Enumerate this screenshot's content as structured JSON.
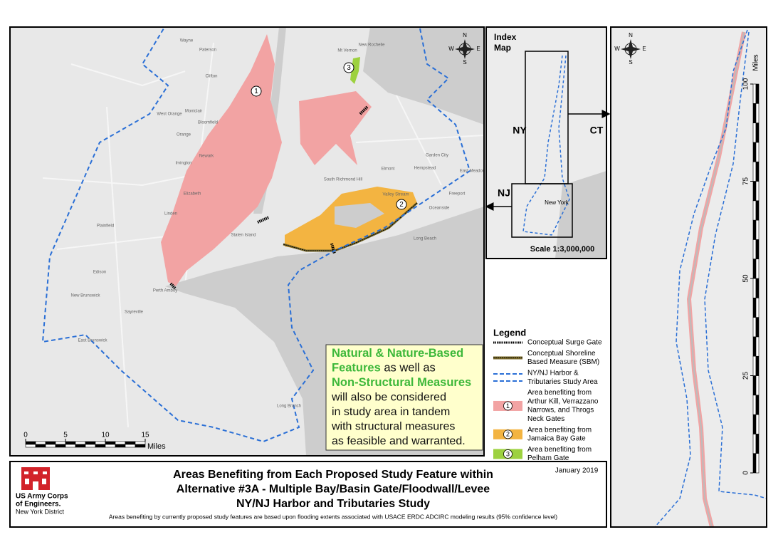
{
  "main_map": {
    "places": [
      "Wayne",
      "Paterson",
      "Clifton",
      "West Orange",
      "Montclair",
      "Bloomfield",
      "Orange",
      "Newark",
      "Irvington",
      "Elizabeth",
      "Linden",
      "Plainfield",
      "Edison",
      "Perth Amboy",
      "New Brunswick",
      "Sayreville",
      "East Brunswick",
      "Staten Island",
      "Long Branch",
      "Mt Vernon",
      "New Rochelle",
      "South Richmond Hill",
      "Elmont",
      "Hempstead",
      "Valley Stream",
      "Freeport",
      "Oceanside",
      "Long Beach",
      "Garden City",
      "East Meadow"
    ],
    "markers": [
      "1",
      "2",
      "3"
    ],
    "compass": {
      "n": "N",
      "e": "E",
      "s": "S",
      "w": "W"
    },
    "scale_bar": {
      "ticks": [
        0,
        5,
        10,
        15
      ],
      "unit": "Miles"
    }
  },
  "callout": {
    "lines": [
      [
        {
          "text": "Natural & Nature-Based",
          "color": "#3db83a"
        }
      ],
      [
        {
          "text": "Features",
          "color": "#3db83a"
        },
        {
          "text": " as well as",
          "color": "#111111"
        }
      ],
      [
        {
          "text": "Non-Structural Measures",
          "color": "#3db83a"
        }
      ],
      [
        {
          "text": "will also be considered",
          "color": "#111111"
        }
      ],
      [
        {
          "text": "in study area in tandem",
          "color": "#111111"
        }
      ],
      [
        {
          "text": "with structural measures",
          "color": "#111111"
        }
      ],
      [
        {
          "text": "as feasible and warranted.",
          "color": "#111111"
        }
      ]
    ]
  },
  "legend": {
    "title": "Legend",
    "items": [
      {
        "symbol": "surge-gate",
        "lines": [
          "Conceptual Surge Gate"
        ]
      },
      {
        "symbol": "shoreline",
        "lines": [
          "Conceptual Shoreline",
          "Based Measure (SBM)"
        ]
      },
      {
        "symbol": "study-area",
        "lines": [
          "NY/NJ Harbor &",
          "Tributaries Study Area"
        ]
      },
      {
        "symbol": "area",
        "marker": "1",
        "color": "#f2a3a3",
        "lines": [
          "Area benefiting from",
          "Arthur Kill, Verrazzano",
          "Narrows, and Throgs",
          "Neck Gates"
        ]
      },
      {
        "symbol": "area",
        "marker": "2",
        "color": "#f3b441",
        "lines": [
          "Area benefiting from",
          "Jamaica Bay Gate"
        ]
      },
      {
        "symbol": "area",
        "marker": "3",
        "color": "#9dd13f",
        "lines": [
          "Area benefiting from",
          "Pelham Gate"
        ]
      }
    ]
  },
  "index_map": {
    "title": [
      "Index",
      "Map"
    ],
    "labels": [
      "NY",
      "CT",
      "NJ",
      "New York"
    ],
    "scale": "Scale 1:3,000,000"
  },
  "strip_map": {
    "scale_ticks": [
      0,
      25,
      50,
      75,
      100
    ],
    "unit": "Miles"
  },
  "title_block": {
    "agency": [
      "US Army Corps",
      "of Engineers.",
      "New York District"
    ],
    "date": "January 2019",
    "title": [
      "Areas Benefiting from Each Proposed Study Feature within",
      "Alternative #3A - Multiple Bay/Basin Gate/Floodwall/Levee",
      "NY/NJ Harbor and Tributaries Study"
    ],
    "note": "Areas benefiting by currently proposed study features are based upon flooding extents associated with USACE ERDC ADCIRC modeling results (95% confidence level)"
  }
}
